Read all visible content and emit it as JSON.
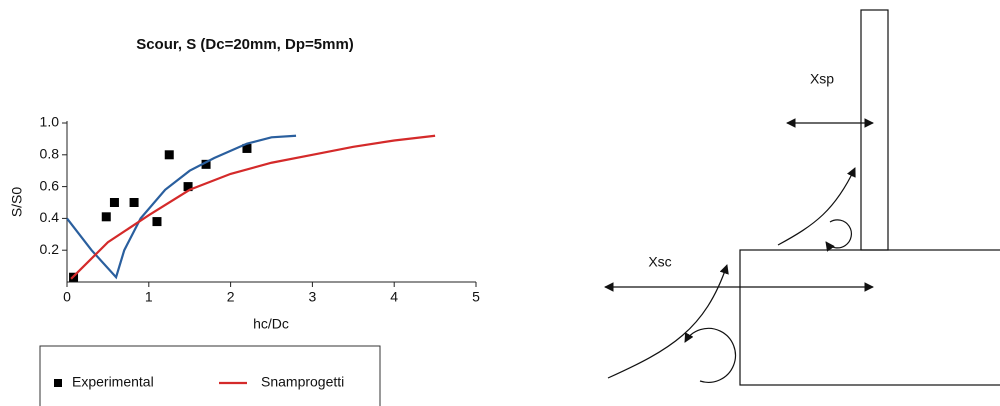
{
  "chart_data": {
    "type": "line",
    "title": "Scour, S (Dc=20mm, Dp=5mm)",
    "x_label": "hc/Dc",
    "y_label": "S/S0",
    "xlim": [
      0,
      5
    ],
    "xticks": [
      0,
      1,
      2,
      3,
      4,
      5
    ],
    "ylim": [
      0,
      1
    ],
    "yticks": [
      0.2,
      0.4,
      0.6,
      0.8,
      {
        "value": 1,
        "label": "1.0"
      }
    ],
    "series": [
      {
        "name": "Experimental",
        "kind": "markers",
        "color": "#000000",
        "x": [
          0.08,
          0.48,
          0.58,
          0.82,
          1.1,
          1.25,
          1.48,
          1.7,
          2.2
        ],
        "values": [
          0.03,
          0.41,
          0.5,
          0.5,
          0.38,
          0.8,
          0.6,
          0.74,
          0.84
        ]
      },
      {
        "kind": "line",
        "color": "#2a5f9e",
        "x": [
          0,
          0.3,
          0.6,
          0.7,
          0.9,
          1.2,
          1.5,
          1.8,
          2.2,
          2.5,
          2.8
        ],
        "values": [
          0.4,
          0.2,
          0.03,
          0.2,
          0.4,
          0.58,
          0.7,
          0.78,
          0.87,
          0.91,
          0.92
        ]
      },
      {
        "name": "Snamprogetti",
        "kind": "line",
        "color": "#d42a2a",
        "x": [
          0.05,
          0.5,
          1,
          1.5,
          2,
          2.5,
          3,
          3.5,
          4,
          4.5
        ],
        "values": [
          0.02,
          0.25,
          0.42,
          0.58,
          0.68,
          0.75,
          0.8,
          0.85,
          0.89,
          0.92
        ]
      }
    ]
  },
  "diagram": {
    "labels": [
      "Xsp",
      "Xsc"
    ]
  }
}
